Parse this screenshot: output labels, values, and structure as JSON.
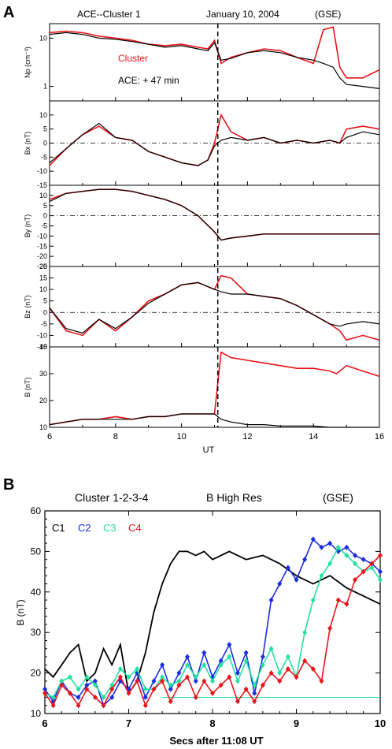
{
  "panel_a": {
    "letter": "A",
    "header_left": "ACE--Cluster 1",
    "header_mid": "January 10, 2004",
    "header_right": "(GSE)",
    "legend_cluster": "Cluster",
    "legend_ace": "ACE: + 47 min",
    "xlabel": "UT",
    "xticks": [
      "6",
      "8",
      "10",
      "12",
      "14",
      "16"
    ]
  },
  "panel_b": {
    "letter": "B",
    "title_left": "Cluster 1-2-3-4",
    "title_mid": "B High Res",
    "title_right": "(GSE)",
    "xlabel": "Secs after 11:08 UT",
    "ylabel": "B (nT)",
    "xticks": [
      "6",
      "7",
      "8",
      "9",
      "10"
    ],
    "yticks": [
      "10",
      "20",
      "30",
      "40",
      "50",
      "60"
    ]
  },
  "colors": {
    "ace": "#000000",
    "cluster": "#e8141a",
    "c1": "#000000",
    "c2": "#1a2ce0",
    "c3": "#22e0a0",
    "c4": "#e8141a"
  },
  "chart_data": [
    {
      "type": "line",
      "title": "ACE--Cluster 1 January 10, 2004 (GSE)",
      "xlabel": "UT",
      "xlim": [
        6,
        16
      ],
      "log_scale_first_panel": true,
      "shock_marker_x": 11.1,
      "panels": [
        {
          "ylabel": "Np (cm⁻³)",
          "ylim": [
            0.5,
            20
          ],
          "yscale": "log",
          "yticks": [
            "10",
            "1"
          ],
          "series": [
            {
              "name": "Cluster",
              "x": [
                6,
                6.5,
                7,
                7.5,
                8,
                8.5,
                9,
                9.5,
                10,
                10.5,
                10.8,
                11.0,
                11.2,
                11.5,
                12,
                12.5,
                13,
                13.5,
                14,
                14.3,
                14.6,
                14.8,
                15,
                15.5,
                16
              ],
              "y": [
                13,
                14,
                13,
                11,
                10,
                9,
                7.5,
                7,
                7.5,
                6.5,
                6,
                9,
                3,
                4,
                5,
                6,
                5.5,
                4,
                3,
                15,
                17,
                2.5,
                1.5,
                1.5,
                2.2
              ]
            },
            {
              "name": "ACE: + 47 min",
              "x": [
                6,
                6.5,
                7,
                7.5,
                8,
                8.5,
                9,
                9.5,
                10,
                10.5,
                10.8,
                11.0,
                11.2,
                11.5,
                12,
                12.5,
                13,
                13.5,
                14,
                14.3,
                14.6,
                14.8,
                15,
                15.5,
                16
              ],
              "y": [
                12,
                13,
                12,
                10,
                9.5,
                8.5,
                7.5,
                6.5,
                7,
                6,
                5.5,
                8,
                3.5,
                3.8,
                5,
                5.5,
                5,
                4,
                3.5,
                3,
                2.5,
                1.5,
                1.1,
                1,
                0.9
              ]
            }
          ]
        },
        {
          "ylabel": "Bx (nT)",
          "ylim": [
            -15,
            15
          ],
          "yticks": [
            "10",
            "5",
            "0",
            "-5",
            "-10",
            "-15"
          ],
          "series": [
            {
              "name": "Cluster",
              "x": [
                6,
                6.5,
                7,
                7.5,
                8,
                8.5,
                9,
                9.5,
                10,
                10.5,
                10.8,
                11.0,
                11.2,
                11.5,
                12,
                12.5,
                13,
                13.5,
                14,
                14.5,
                14.8,
                15,
                15.5,
                16
              ],
              "y": [
                -8,
                -2,
                3,
                6,
                2,
                1,
                -3,
                -5,
                -7,
                -8,
                -6,
                0,
                10,
                4,
                1,
                2,
                0,
                1,
                0,
                1,
                0,
                5,
                6,
                5
              ]
            },
            {
              "name": "ACE: + 47 min",
              "x": [
                6,
                6.5,
                7,
                7.5,
                8,
                8.5,
                9,
                9.5,
                10,
                10.5,
                10.8,
                11.0,
                11.2,
                11.5,
                12,
                12.5,
                13,
                13.5,
                14,
                14.5,
                14.8,
                15,
                15.5,
                16
              ],
              "y": [
                -7,
                -2,
                3,
                7,
                2,
                1,
                -3,
                -5,
                -7,
                -8,
                -6,
                -1,
                1,
                2,
                1,
                2,
                0,
                1,
                0,
                1,
                0,
                2,
                4,
                3
              ]
            }
          ]
        },
        {
          "ylabel": "By (nT)",
          "ylim": [
            -25,
            15
          ],
          "yticks": [
            "10",
            "5",
            "0",
            "-5",
            "-10",
            "-15",
            "-20",
            "-25"
          ],
          "series": [
            {
              "name": "Cluster",
              "x": [
                6,
                6.5,
                7,
                7.5,
                8,
                8.5,
                9,
                9.5,
                10,
                10.5,
                11.0,
                11.2,
                11.5,
                12,
                12.5,
                13,
                13.5,
                14,
                14.5,
                15,
                15.5,
                16
              ],
              "y": [
                8,
                11,
                12,
                13,
                13,
                12,
                10,
                8,
                5,
                0,
                -8,
                -12,
                -11,
                -10,
                -9,
                -9,
                -9,
                -9,
                -9,
                -9,
                -9,
                -9
              ]
            },
            {
              "name": "ACE: + 47 min",
              "x": [
                6,
                6.5,
                7,
                7.5,
                8,
                8.5,
                9,
                9.5,
                10,
                10.5,
                11.0,
                11.2,
                11.5,
                12,
                12.5,
                13,
                13.5,
                14,
                14.5,
                15,
                15.5,
                16
              ],
              "y": [
                7,
                11,
                12,
                13,
                13,
                12,
                10,
                8,
                5,
                0,
                -8,
                -12,
                -11,
                -10,
                -9,
                -9,
                -9,
                -9,
                -9,
                -9,
                -9,
                -9
              ]
            }
          ]
        },
        {
          "ylabel": "Bz (nT)",
          "ylim": [
            -15,
            20
          ],
          "yticks": [
            "20",
            "15",
            "10",
            "5",
            "0",
            "-5",
            "-10",
            "-15"
          ],
          "series": [
            {
              "name": "Cluster",
              "x": [
                6,
                6.5,
                7,
                7.5,
                8,
                8.5,
                9,
                9.5,
                10,
                10.5,
                11.0,
                11.2,
                11.5,
                12,
                12.5,
                13,
                13.5,
                14,
                14.5,
                14.8,
                15,
                15.5,
                16
              ],
              "y": [
                2,
                -8,
                -10,
                -3,
                -8,
                -2,
                5,
                8,
                12,
                13,
                10,
                16,
                15,
                8,
                7,
                6,
                3,
                -1,
                -5,
                -8,
                -12,
                -10,
                -12
              ]
            },
            {
              "name": "ACE: + 47 min",
              "x": [
                6,
                6.5,
                7,
                7.5,
                8,
                8.5,
                9,
                9.5,
                10,
                10.5,
                11.0,
                11.2,
                11.5,
                12,
                12.5,
                13,
                13.5,
                14,
                14.5,
                14.8,
                15,
                15.5,
                16
              ],
              "y": [
                2,
                -7,
                -9,
                -3,
                -7,
                -2,
                4,
                8,
                12,
                13,
                10,
                9,
                8,
                8,
                7,
                6,
                3,
                -1,
                -5,
                -6,
                -5,
                -4,
                -5
              ]
            }
          ]
        },
        {
          "ylabel": "B (nT)",
          "ylim": [
            10,
            40
          ],
          "yticks": [
            "40",
            "30",
            "20",
            "10"
          ],
          "series": [
            {
              "name": "Cluster",
              "x": [
                6,
                6.5,
                7,
                7.5,
                8,
                8.5,
                9,
                9.5,
                10,
                10.5,
                11.0,
                11.2,
                11.5,
                12,
                12.5,
                13,
                13.5,
                14,
                14.5,
                14.7,
                15,
                15.5,
                16
              ],
              "y": [
                11,
                12,
                13,
                13,
                14,
                13,
                14,
                14,
                15,
                15,
                15,
                38,
                36,
                35,
                34,
                33,
                32,
                32,
                31,
                30,
                33,
                31,
                29
              ]
            },
            {
              "name": "ACE: + 47 min",
              "x": [
                6,
                6.5,
                7,
                7.5,
                8,
                8.5,
                9,
                9.5,
                10,
                10.5,
                11.0,
                11.2,
                11.5,
                12,
                12.5,
                13,
                13.5,
                14,
                14.5,
                14.7,
                15,
                15.5,
                16
              ],
              "y": [
                11,
                12,
                13,
                13,
                13,
                13,
                14,
                14,
                15,
                15,
                15,
                13,
                12,
                11,
                11,
                10.5,
                10.5,
                10.5,
                10,
                10,
                10,
                10,
                10
              ]
            }
          ]
        }
      ]
    },
    {
      "type": "line",
      "title": "Cluster 1-2-3-4 B High Res (GSE)",
      "xlabel": "Secs after 11:08 UT",
      "ylabel": "B (nT)",
      "xlim": [
        6,
        10
      ],
      "ylim": [
        10,
        60
      ],
      "series": [
        {
          "name": "C1",
          "x": [
            6,
            6.1,
            6.2,
            6.3,
            6.4,
            6.5,
            6.6,
            6.7,
            6.8,
            6.9,
            7.0,
            7.1,
            7.2,
            7.3,
            7.4,
            7.5,
            7.6,
            7.7,
            7.8,
            7.9,
            8.0,
            8.2,
            8.4,
            8.6,
            8.8,
            9.0,
            9.2,
            9.4,
            9.6,
            9.8,
            10.0
          ],
          "y": [
            21,
            19,
            22,
            25,
            27,
            18,
            20,
            26,
            22,
            27,
            15,
            18,
            25,
            35,
            42,
            47,
            50,
            50,
            49,
            50,
            48,
            50,
            48,
            49,
            47,
            44,
            42,
            44,
            41,
            39,
            37
          ]
        },
        {
          "name": "C2",
          "x": [
            6,
            6.1,
            6.2,
            6.3,
            6.4,
            6.5,
            6.6,
            6.7,
            6.8,
            6.9,
            7.0,
            7.1,
            7.2,
            7.3,
            7.4,
            7.5,
            7.6,
            7.7,
            7.8,
            7.9,
            8.0,
            8.1,
            8.2,
            8.3,
            8.4,
            8.5,
            8.6,
            8.7,
            8.8,
            8.9,
            9.0,
            9.1,
            9.2,
            9.3,
            9.4,
            9.5,
            9.6,
            9.7,
            9.8,
            9.9,
            10.0
          ],
          "y": [
            16,
            13,
            18,
            15,
            14,
            17,
            18,
            12,
            14,
            18,
            16,
            20,
            14,
            18,
            22,
            16,
            20,
            24,
            18,
            25,
            19,
            23,
            27,
            20,
            25,
            15,
            24,
            38,
            42,
            46,
            43,
            48,
            53,
            51,
            52,
            50,
            51,
            49,
            48,
            47,
            45
          ]
        },
        {
          "name": "C3",
          "x": [
            6,
            6.1,
            6.2,
            6.3,
            6.4,
            6.5,
            6.6,
            6.7,
            6.8,
            6.9,
            7.0,
            7.1,
            7.2,
            7.3,
            7.4,
            7.5,
            7.6,
            7.7,
            7.8,
            7.9,
            8.0,
            8.1,
            8.2,
            8.3,
            8.4,
            8.5,
            8.6,
            8.7,
            8.8,
            8.9,
            9.0,
            9.1,
            9.2,
            9.3,
            9.4,
            9.5,
            9.6,
            9.7,
            9.8,
            9.9,
            10.0
          ],
          "y": [
            15,
            14,
            18,
            19,
            16,
            19,
            17,
            14,
            17,
            21,
            19,
            21,
            16,
            16,
            19,
            17,
            18,
            22,
            19,
            22,
            18,
            22,
            24,
            18,
            23,
            17,
            22,
            26,
            20,
            24,
            19,
            30,
            38,
            44,
            47,
            51,
            49,
            47,
            45,
            46,
            43
          ]
        },
        {
          "name": "C4",
          "x": [
            6,
            6.1,
            6.2,
            6.3,
            6.4,
            6.5,
            6.6,
            6.7,
            6.8,
            6.9,
            7.0,
            7.1,
            7.2,
            7.3,
            7.4,
            7.5,
            7.6,
            7.7,
            7.8,
            7.9,
            8.0,
            8.1,
            8.2,
            8.3,
            8.4,
            8.5,
            8.6,
            8.7,
            8.8,
            8.9,
            9.0,
            9.1,
            9.2,
            9.3,
            9.4,
            9.5,
            9.6,
            9.7,
            9.8,
            9.9,
            10.0
          ],
          "y": [
            15,
            12,
            17,
            15,
            12,
            16,
            14,
            12,
            16,
            19,
            15,
            18,
            12,
            16,
            18,
            13,
            17,
            19,
            14,
            18,
            15,
            17,
            19,
            13,
            16,
            13,
            17,
            20,
            18,
            21,
            19,
            23,
            21,
            18,
            31,
            38,
            37,
            43,
            45,
            47,
            49
          ]
        }
      ]
    }
  ]
}
